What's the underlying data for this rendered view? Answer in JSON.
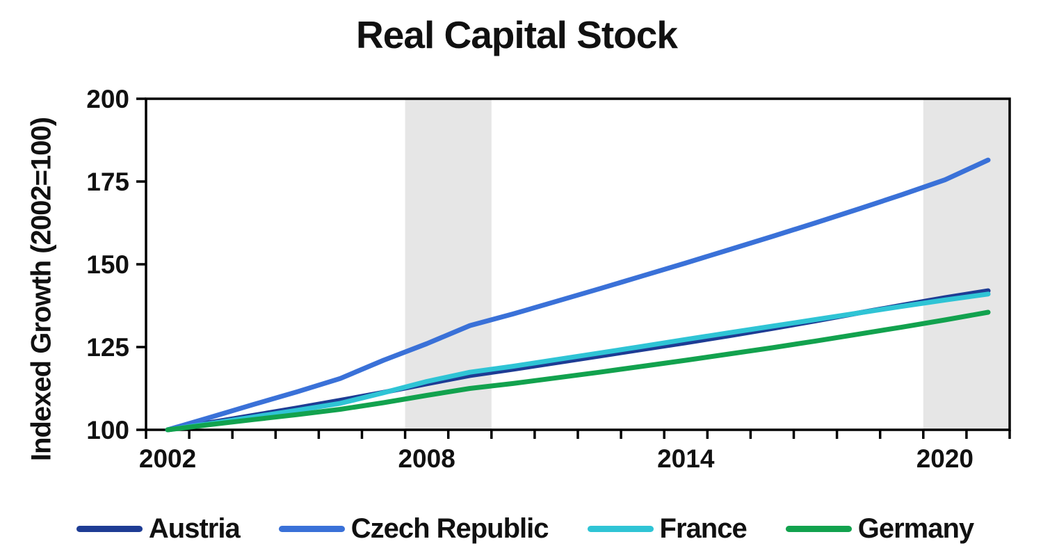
{
  "title": "Real Capital Stock",
  "y_axis": {
    "title": "Indexed Growth (2002=100)"
  },
  "chart_data": {
    "type": "line",
    "title": "Real Capital Stock",
    "xlabel": "",
    "ylabel": "Indexed Growth (2002=100)",
    "x": [
      2002,
      2003,
      2004,
      2005,
      2006,
      2007,
      2008,
      2009,
      2010,
      2011,
      2012,
      2013,
      2014,
      2015,
      2016,
      2017,
      2018,
      2019,
      2020,
      2021
    ],
    "xtick_labels": [
      2002,
      2008,
      2014,
      2020
    ],
    "ylim": [
      100,
      200
    ],
    "yticks": [
      100,
      125,
      150,
      175,
      200
    ],
    "grid": false,
    "legend_position": "bottom",
    "series": [
      {
        "name": "Austria",
        "color": "#1E3C94",
        "values": [
          100,
          102.2,
          104.4,
          106.6,
          108.9,
          111.3,
          113.9,
          116.4,
          118.3,
          120.3,
          122.3,
          124.3,
          126.3,
          128.4,
          130.6,
          132.9,
          135.3,
          137.6,
          139.9,
          142.0
        ]
      },
      {
        "name": "Czech Republic",
        "color": "#3A71D8",
        "values": [
          100,
          103.8,
          107.7,
          111.5,
          115.5,
          121.0,
          126.0,
          131.5,
          135.0,
          138.8,
          142.6,
          146.5,
          150.4,
          154.4,
          158.4,
          162.5,
          166.7,
          171.0,
          175.5,
          181.5
        ]
      },
      {
        "name": "France",
        "color": "#2FC4D5",
        "values": [
          100,
          101.9,
          103.9,
          105.9,
          108.0,
          111.2,
          114.6,
          117.4,
          119.2,
          121.2,
          123.2,
          125.2,
          127.3,
          129.3,
          131.3,
          133.3,
          135.3,
          137.3,
          139.2,
          141.0
        ]
      },
      {
        "name": "Germany",
        "color": "#12A24E",
        "values": [
          100,
          101.6,
          103.1,
          104.6,
          106.2,
          108.2,
          110.4,
          112.5,
          114.0,
          115.7,
          117.4,
          119.2,
          121.0,
          122.9,
          124.8,
          126.8,
          128.9,
          131.0,
          133.2,
          135.5
        ]
      }
    ],
    "shaded_bands": [
      {
        "from": 2008,
        "to": 2009,
        "color": "#E6E6E6"
      },
      {
        "from": 2020,
        "to": 2021,
        "color": "#E6E6E6"
      }
    ],
    "axis_color": "#000000"
  }
}
